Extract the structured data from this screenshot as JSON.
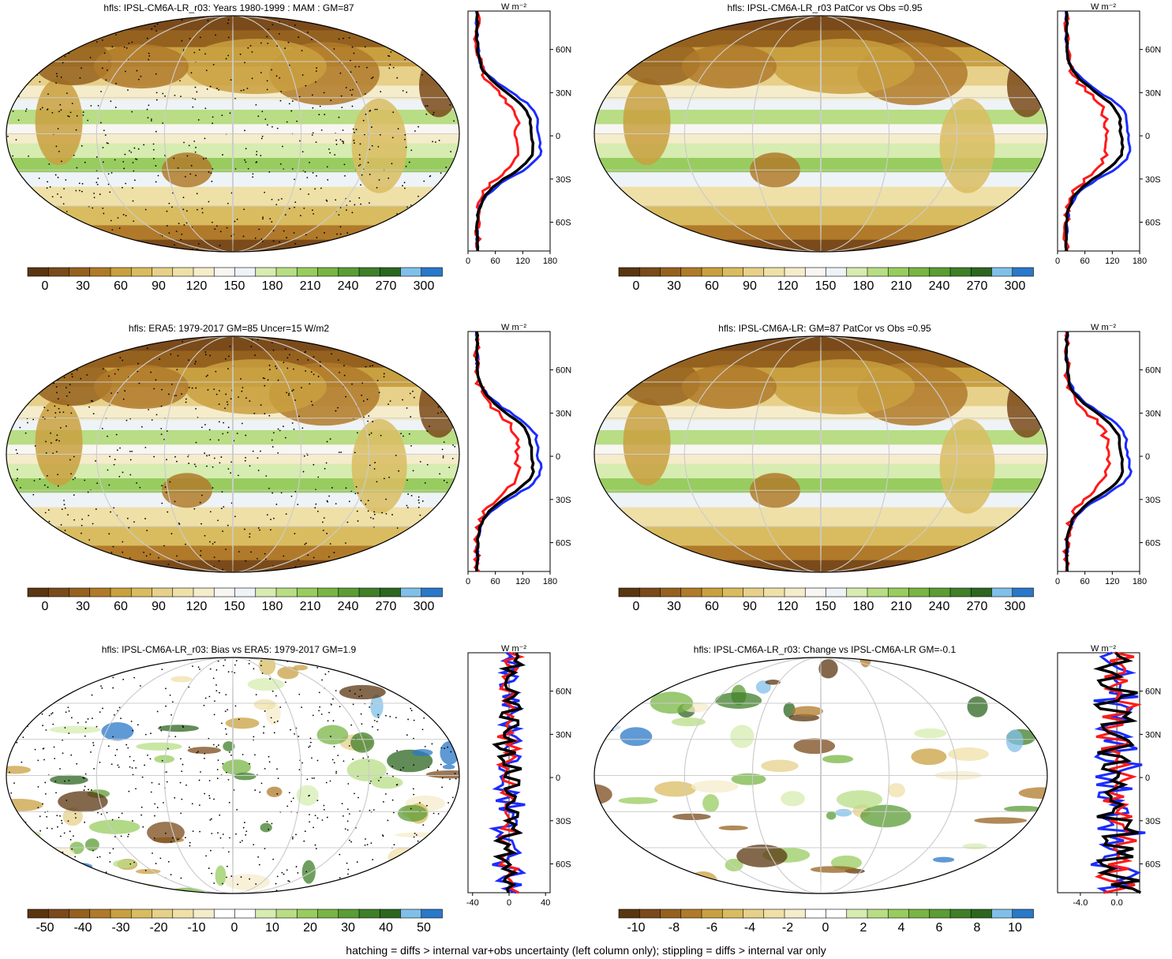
{
  "footer": "hatching = diffs > internal var+obs uncertainty (left column only); stippling = diffs > internal var only",
  "profile_units": "W m⁻²",
  "lat_labels": [
    "60N",
    "30N",
    "0",
    "30S",
    "60S"
  ],
  "colors": {
    "palette_abs": [
      "#5a3510",
      "#7a4a1a",
      "#95611f",
      "#b07a2a",
      "#c9a040",
      "#d9bc60",
      "#e6d08a",
      "#efe0a8",
      "#f5eccb",
      "#f8f6f2",
      "#eef3f8",
      "#d6ecb0",
      "#b8dd85",
      "#98cc5f",
      "#78b544",
      "#5b9c34",
      "#3f7f28",
      "#2c6620",
      "#80c0e8",
      "#2a78c8"
    ],
    "palette_diff": [
      "#5a3510",
      "#7a4a1a",
      "#95611f",
      "#b07a2a",
      "#c9a040",
      "#d9bc60",
      "#e6d08a",
      "#efe0a8",
      "#f5eccb",
      "#ffffff",
      "#ffffff",
      "#d6ecb0",
      "#b8dd85",
      "#98cc5f",
      "#78b544",
      "#5b9c34",
      "#3f7f28",
      "#2c6620",
      "#80c0e8",
      "#2a78c8"
    ],
    "line_model": "#000000",
    "line_a": "#1a2cff",
    "line_b": "#ff1a1a"
  },
  "panels": [
    {
      "title": "hfls: IPSL-CM6A-LR_r03: Years 1980-1999 : MAM : GM=87",
      "colorbar_labels": [
        "0",
        "30",
        "60",
        "90",
        "120",
        "150",
        "180",
        "210",
        "240",
        "270",
        "300"
      ],
      "profile_xticks": [
        "0",
        "60",
        "120",
        "180"
      ],
      "profile_xlim": [
        0,
        180
      ]
    },
    {
      "title": "hfls: IPSL-CM6A-LR_r03 PatCor vs Obs =0.95",
      "colorbar_labels": [
        "0",
        "30",
        "60",
        "90",
        "120",
        "150",
        "180",
        "210",
        "240",
        "270",
        "300"
      ],
      "profile_xticks": [
        "0",
        "60",
        "120",
        "180"
      ],
      "profile_xlim": [
        0,
        180
      ]
    },
    {
      "title": "hfls: ERA5: 1979-2017 GM=85 Uncer=15 W/m2",
      "colorbar_labels": [
        "0",
        "30",
        "60",
        "90",
        "120",
        "150",
        "180",
        "210",
        "240",
        "270",
        "300"
      ],
      "profile_xticks": [
        "0",
        "60",
        "120",
        "180"
      ],
      "profile_xlim": [
        0,
        180
      ]
    },
    {
      "title": "hfls: IPSL-CM6A-LR: GM=87 PatCor vs Obs =0.95",
      "colorbar_labels": [
        "0",
        "30",
        "60",
        "90",
        "120",
        "150",
        "180",
        "210",
        "240",
        "270",
        "300"
      ],
      "profile_xticks": [
        "0",
        "60",
        "120",
        "180"
      ],
      "profile_xlim": [
        0,
        180
      ]
    },
    {
      "title": "hfls: IPSL-CM6A-LR_r03: Bias vs ERA5: 1979-2017 GM=1.9",
      "colorbar_labels": [
        "-50",
        "-40",
        "-30",
        "-20",
        "-10",
        "0",
        "10",
        "20",
        "30",
        "40",
        "50"
      ],
      "profile_xticks": [
        "-40",
        "0",
        "40"
      ],
      "profile_xlim": [
        -45,
        45
      ]
    },
    {
      "title": "hfls: IPSL-CM6A-LR_r03: Change vs IPSL-CM6A-LR GM=-0.1",
      "colorbar_labels": [
        "-10",
        "-8",
        "-6",
        "-4",
        "-2",
        "0",
        "2",
        "4",
        "6",
        "8",
        "10"
      ],
      "profile_xticks": [
        "-4.0",
        "0.0"
      ],
      "profile_xlim": [
        -6.5,
        2.5
      ]
    }
  ]
}
